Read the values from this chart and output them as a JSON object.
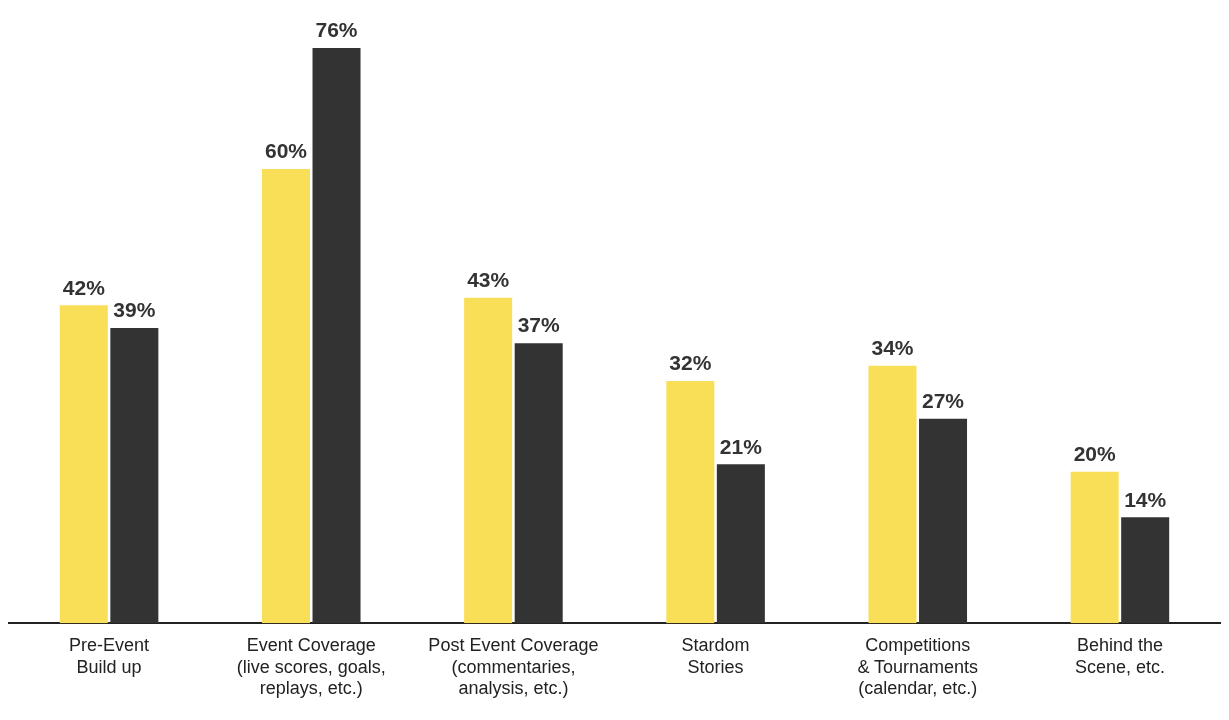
{
  "chart_data": {
    "type": "bar",
    "categories": [
      "Pre-Event\nBuild up",
      "Event Coverage\n(live scores, goals,\nreplays, etc.)",
      "Post Event Coverage\n(commentaries,\nanalysis, etc.)",
      "Stardom\nStories",
      "Competitions\n& Tournaments\n(calendar, etc.)",
      "Behind the\nScene, etc."
    ],
    "series": [
      {
        "color": "#f9df57",
        "values": [
          42,
          60,
          43,
          32,
          34,
          20
        ],
        "value_labels": [
          "42%",
          "60%",
          "43%",
          "32%",
          "34%",
          "20%"
        ]
      },
      {
        "color": "#333333",
        "values": [
          39,
          76,
          37,
          21,
          27,
          14
        ],
        "value_labels": [
          "39%",
          "76%",
          "37%",
          "21%",
          "27%",
          "14%"
        ]
      }
    ],
    "ylim": [
      0,
      76
    ],
    "tick_labels": "x",
    "grid": false,
    "legend": false
  }
}
